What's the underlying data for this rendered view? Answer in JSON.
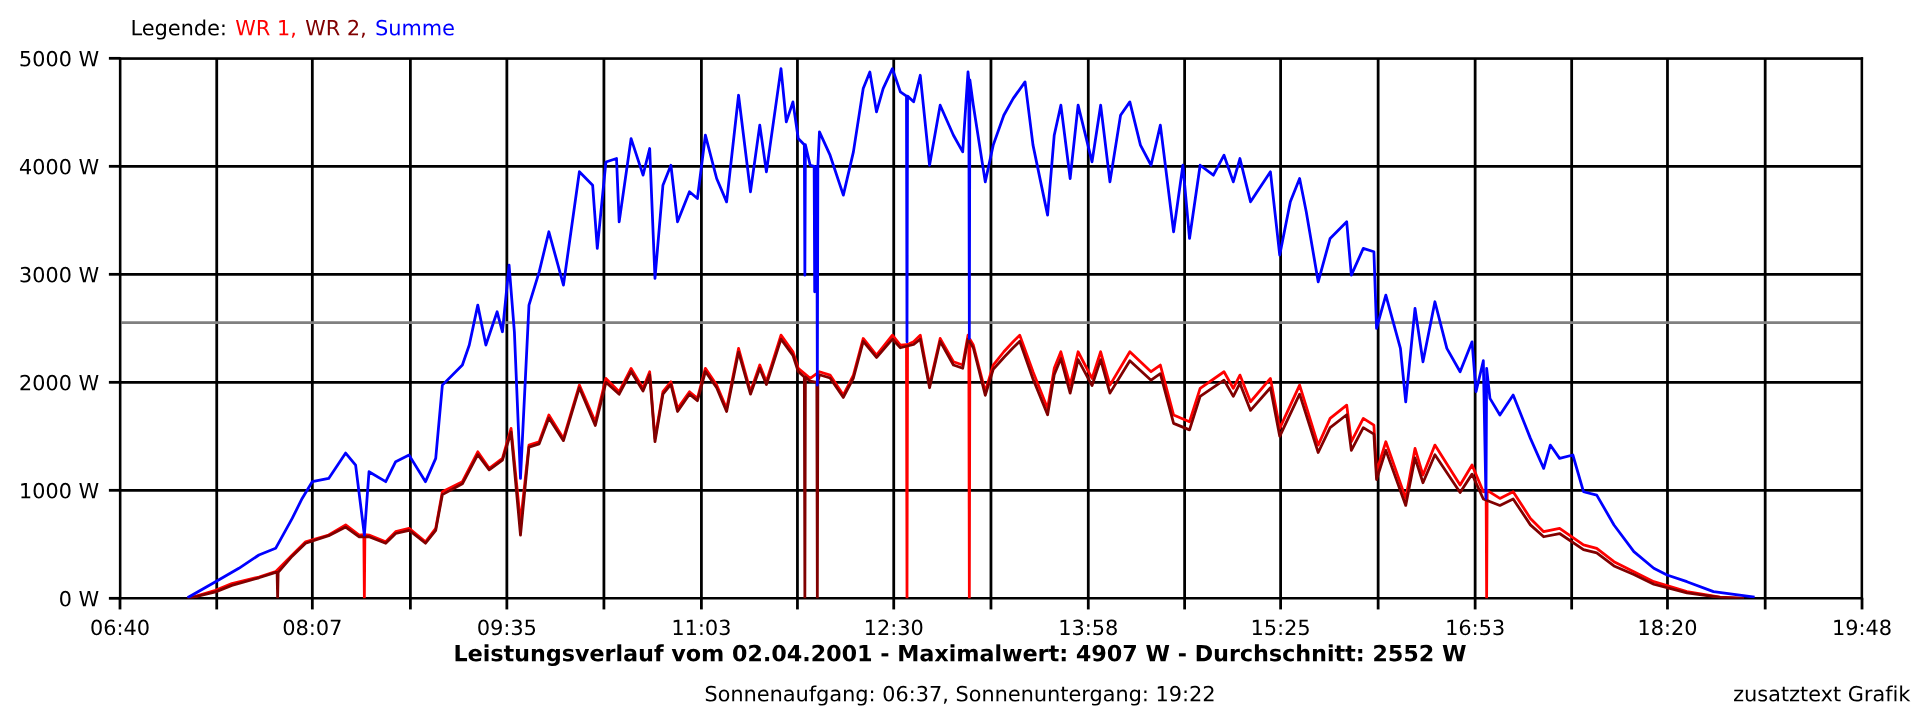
{
  "chart_data": {
    "type": "line",
    "title": "Leistungsverlauf vom 02.04.2001 - Maximalwert: 4907 W - Durchschnitt: 2552 W",
    "subtitle": "Sonnenaufgang: 06:37, Sonnenuntergang: 19:22",
    "legend_title": "Legende:",
    "legend": "top left",
    "grid": true,
    "marker": "none",
    "line_style": "solid",
    "annotations": [
      "zusatztext Grafik"
    ],
    "xlim": [
      6.6667,
      19.8
    ],
    "ylim": [
      0,
      5000
    ],
    "xticks": [
      {
        "value": 6.6667,
        "label": "06:40"
      },
      {
        "value": 7.396,
        "label": null
      },
      {
        "value": 8.1167,
        "label": "08:07"
      },
      {
        "value": 8.856,
        "label": null
      },
      {
        "value": 9.5833,
        "label": "09:35"
      },
      {
        "value": 10.315,
        "label": null
      },
      {
        "value": 11.05,
        "label": "11:03"
      },
      {
        "value": 11.774,
        "label": null
      },
      {
        "value": 12.5,
        "label": "12:30"
      },
      {
        "value": 13.233,
        "label": null
      },
      {
        "value": 13.9667,
        "label": "13:58"
      },
      {
        "value": 14.693,
        "label": null
      },
      {
        "value": 15.4167,
        "label": "15:25"
      },
      {
        "value": 16.152,
        "label": null
      },
      {
        "value": 16.8833,
        "label": "16:53"
      },
      {
        "value": 17.611,
        "label": null
      },
      {
        "value": 18.3333,
        "label": "18:20"
      },
      {
        "value": 19.07,
        "label": null
      },
      {
        "value": 19.8,
        "label": "19:48"
      }
    ],
    "yticks": [
      {
        "value": 0,
        "label": "0 W"
      },
      {
        "value": 1000,
        "label": "1000 W"
      },
      {
        "value": 2000,
        "label": "2000 W"
      },
      {
        "value": 3000,
        "label": "3000 W"
      },
      {
        "value": 4000,
        "label": "4000 W"
      },
      {
        "value": 5000,
        "label": "5000 W"
      }
    ],
    "ref_lines": [
      {
        "axis": "y",
        "value": 2552,
        "color": "#808080"
      }
    ],
    "series": [
      {
        "name": "WR 1,",
        "color": "#ff0000",
        "x": [
          7.185,
          7.387,
          7.51,
          7.714,
          7.84,
          7.965,
          8.066,
          8.24,
          8.368,
          8.47,
          8.505,
          8.509,
          8.513,
          8.544,
          8.67,
          8.745,
          8.846,
          8.97,
          9.047,
          9.097,
          9.248,
          9.364,
          9.45,
          9.55,
          9.615,
          9.686,
          9.75,
          9.827,
          9.9,
          10.01,
          10.13,
          10.25,
          10.33,
          10.43,
          10.52,
          10.61,
          10.66,
          10.7,
          10.76,
          10.82,
          10.87,
          10.96,
          11.02,
          11.08,
          11.165,
          11.24,
          11.33,
          11.42,
          11.49,
          11.54,
          11.65,
          11.74,
          11.78,
          11.87,
          11.94,
          12.02,
          12.12,
          12.196,
          12.27,
          12.37,
          12.49,
          12.55,
          12.596,
          12.6,
          12.604,
          12.65,
          12.7,
          12.77,
          12.85,
          12.95,
          13.02,
          13.06,
          13.066,
          13.07,
          13.074,
          13.1,
          13.19,
          13.25,
          13.33,
          13.4,
          13.45,
          13.55,
          13.66,
          13.71,
          13.76,
          13.83,
          13.89,
          13.995,
          14.06,
          14.13,
          14.28,
          14.44,
          14.51,
          14.61,
          14.73,
          14.81,
          14.99,
          15.06,
          15.11,
          15.19,
          15.34,
          15.41,
          15.56,
          15.7,
          15.79,
          15.915,
          15.95,
          16.04,
          16.12,
          16.14,
          16.21,
          16.36,
          16.43,
          16.49,
          16.58,
          16.77,
          16.86,
          16.945,
          16.966,
          16.97,
          16.974,
          17.07,
          17.17,
          17.3,
          17.4,
          17.52,
          17.7,
          17.8,
          17.93,
          18.08,
          18.23,
          18.48,
          18.73,
          18.9
        ],
        "values": [
          0,
          74,
          136,
          197,
          247,
          401,
          524,
          586,
          679,
          586,
          590,
          0,
          590,
          586,
          524,
          617,
          648,
          524,
          648,
          987,
          1080,
          1357,
          1203,
          1296,
          1573,
          700,
          1419,
          1450,
          1697,
          1481,
          1974,
          1635,
          2036,
          1913,
          2129,
          1944,
          2098,
          1481,
          1913,
          2005,
          1758,
          1913,
          1851,
          2129,
          1974,
          1758,
          2314,
          1913,
          2160,
          2005,
          2437,
          2283,
          2129,
          2036,
          2098,
          2067,
          1882,
          2067,
          2406,
          2252,
          2437,
          2345,
          2350,
          0,
          2350,
          2375,
          2437,
          1974,
          2406,
          2190,
          2160,
          2437,
          2400,
          0,
          2400,
          2345,
          1913,
          2160,
          2283,
          2375,
          2437,
          2098,
          1758,
          2129,
          2283,
          1974,
          2283,
          2036,
          2283,
          1974,
          2283,
          2098,
          2160,
          1697,
          1635,
          1944,
          2098,
          1944,
          2067,
          1820,
          2036,
          1573,
          1974,
          1419,
          1666,
          1789,
          1450,
          1666,
          1604,
          1172,
          1450,
          925,
          1388,
          1141,
          1419,
          1049,
          1234,
          987,
          1000,
          0,
          1000,
          925,
          987,
          740,
          617,
          648,
          494,
          463,
          339,
          247,
          154,
          62,
          12,
          0
        ]
      },
      {
        "name": "WR 2,",
        "color": "#800000",
        "x": [
          7.185,
          7.387,
          7.51,
          7.714,
          7.84,
          7.851,
          7.855,
          7.859,
          7.965,
          8.066,
          8.24,
          8.368,
          8.47,
          8.544,
          8.67,
          8.745,
          8.846,
          8.97,
          9.047,
          9.097,
          9.248,
          9.364,
          9.45,
          9.55,
          9.615,
          9.686,
          9.75,
          9.827,
          9.9,
          10.01,
          10.13,
          10.25,
          10.33,
          10.43,
          10.52,
          10.61,
          10.66,
          10.7,
          10.76,
          10.82,
          10.87,
          10.96,
          11.02,
          11.08,
          11.165,
          11.24,
          11.33,
          11.42,
          11.49,
          11.54,
          11.65,
          11.74,
          11.78,
          11.826,
          11.83,
          11.834,
          11.87,
          11.92,
          11.924,
          11.928,
          11.94,
          12.02,
          12.12,
          12.196,
          12.27,
          12.37,
          12.49,
          12.55,
          12.65,
          12.7,
          12.77,
          12.85,
          12.95,
          13.02,
          13.06,
          13.1,
          13.19,
          13.25,
          13.33,
          13.4,
          13.45,
          13.55,
          13.66,
          13.71,
          13.76,
          13.83,
          13.89,
          13.995,
          14.06,
          14.13,
          14.28,
          14.44,
          14.51,
          14.61,
          14.73,
          14.81,
          14.99,
          15.06,
          15.11,
          15.19,
          15.34,
          15.41,
          15.56,
          15.7,
          15.79,
          15.915,
          15.95,
          16.04,
          16.12,
          16.14,
          16.21,
          16.36,
          16.43,
          16.49,
          16.58,
          16.77,
          16.86,
          16.945,
          17.07,
          17.17,
          17.3,
          17.4,
          17.52,
          17.7,
          17.8,
          17.93,
          18.08,
          18.23,
          18.48,
          18.73,
          18.9
        ],
        "values": [
          0,
          60,
          120,
          190,
          240,
          240,
          0,
          240,
          390,
          510,
          580,
          660,
          570,
          570,
          510,
          600,
          630,
          510,
          630,
          960,
          1060,
          1330,
          1190,
          1280,
          1540,
          586,
          1400,
          1430,
          1670,
          1460,
          1950,
          1600,
          2000,
          1890,
          2100,
          1920,
          2070,
          1450,
          1890,
          1980,
          1730,
          1890,
          1830,
          2100,
          1950,
          1730,
          2280,
          1890,
          2130,
          1980,
          2400,
          2250,
          2100,
          2050,
          0,
          2050,
          2010,
          2000,
          0,
          2000,
          2070,
          2040,
          1860,
          2040,
          2380,
          2230,
          2400,
          2320,
          2350,
          2400,
          1950,
          2380,
          2160,
          2130,
          2400,
          2320,
          1880,
          2120,
          2230,
          2320,
          2380,
          2030,
          1700,
          2070,
          2220,
          1900,
          2210,
          1970,
          2210,
          1900,
          2200,
          2020,
          2080,
          1620,
          1560,
          1870,
          2020,
          1870,
          1990,
          1740,
          1950,
          1500,
          1890,
          1350,
          1580,
          1700,
          1370,
          1580,
          1520,
          1100,
          1370,
          860,
          1300,
          1070,
          1330,
          980,
          1150,
          920,
          860,
          920,
          680,
          570,
          600,
          450,
          420,
          300,
          220,
          130,
          50,
          8,
          0
        ]
      },
      {
        "name": "Summe",
        "color": "#0000ff",
        "x": [
          7.185,
          7.387,
          7.563,
          7.714,
          7.84,
          7.965,
          8.04,
          8.116,
          8.24,
          8.368,
          8.443,
          8.509,
          8.544,
          8.67,
          8.745,
          8.846,
          8.97,
          9.047,
          9.097,
          9.248,
          9.3,
          9.364,
          9.425,
          9.51,
          9.55,
          9.6,
          9.64,
          9.686,
          9.75,
          9.827,
          9.9,
          10.01,
          10.13,
          10.23,
          10.265,
          10.33,
          10.41,
          10.43,
          10.52,
          10.61,
          10.66,
          10.7,
          10.76,
          10.82,
          10.87,
          10.96,
          11.02,
          11.08,
          11.165,
          11.24,
          11.33,
          11.42,
          11.49,
          11.54,
          11.65,
          11.69,
          11.74,
          11.78,
          11.826,
          11.83,
          11.834,
          11.87,
          11.9,
          11.904,
          11.92,
          11.924,
          11.928,
          11.94,
          12.02,
          12.12,
          12.196,
          12.27,
          12.32,
          12.37,
          12.42,
          12.49,
          12.55,
          12.596,
          12.6,
          12.604,
          12.65,
          12.7,
          12.77,
          12.85,
          12.95,
          13.02,
          13.06,
          13.066,
          13.07,
          13.074,
          13.1,
          13.19,
          13.25,
          13.33,
          13.4,
          13.49,
          13.55,
          13.66,
          13.71,
          13.76,
          13.83,
          13.89,
          13.995,
          14.06,
          14.13,
          14.21,
          14.28,
          14.36,
          14.44,
          14.51,
          14.61,
          14.68,
          14.73,
          14.81,
          14.91,
          14.99,
          15.06,
          15.11,
          15.19,
          15.34,
          15.41,
          15.49,
          15.56,
          15.61,
          15.7,
          15.79,
          15.915,
          15.95,
          16.04,
          16.12,
          16.14,
          16.21,
          16.32,
          16.36,
          16.43,
          16.49,
          16.58,
          16.67,
          16.77,
          16.86,
          16.89,
          16.945,
          16.965,
          16.97,
          16.995,
          17.07,
          17.17,
          17.3,
          17.4,
          17.45,
          17.52,
          17.62,
          17.7,
          17.8,
          17.93,
          18.08,
          18.23,
          18.33,
          18.48,
          18.68,
          18.98
        ],
        "values": [
          12,
          154,
          278,
          401,
          463,
          740,
          925,
          1080,
          1110,
          1345,
          1234,
          586,
          1172,
          1080,
          1265,
          1326,
          1080,
          1296,
          1974,
          2160,
          2345,
          2715,
          2345,
          2653,
          2468,
          3085,
          2468,
          1110,
          2715,
          3023,
          3394,
          2900,
          3950,
          3825,
          3240,
          4040,
          4072,
          3486,
          4257,
          3918,
          4165,
          2962,
          3825,
          4010,
          3486,
          3764,
          3702,
          4288,
          3887,
          3671,
          4658,
          3764,
          4381,
          3949,
          4905,
          4412,
          4597,
          4257,
          4200,
          2992,
          4200,
          4010,
          4000,
          2838,
          4000,
          1974,
          4000,
          4319,
          4103,
          3733,
          4134,
          4720,
          4874,
          4504,
          4720,
          4905,
          4689,
          4650,
          2375,
          4650,
          4597,
          4843,
          4010,
          4566,
          4288,
          4134,
          4874,
          4800,
          2406,
          4800,
          4566,
          3856,
          4196,
          4473,
          4627,
          4782,
          4196,
          3548,
          4288,
          4566,
          3887,
          4566,
          4041,
          4566,
          3856,
          4473,
          4597,
          4196,
          4010,
          4381,
          3394,
          4010,
          3332,
          4010,
          3918,
          4103,
          3856,
          4072,
          3671,
          3949,
          3178,
          3671,
          3887,
          3579,
          2931,
          3332,
          3486,
          2992,
          3240,
          3209,
          2499,
          2807,
          2314,
          1820,
          2684,
          2190,
          2746,
          2314,
          2098,
          2375,
          1913,
          2200,
          925,
          2129,
          1851,
          1697,
          1882,
          1481,
          1203,
          1419,
          1296,
          1327,
          987,
          956,
          679,
          432,
          278,
          216,
          154,
          62,
          12
        ]
      }
    ]
  }
}
